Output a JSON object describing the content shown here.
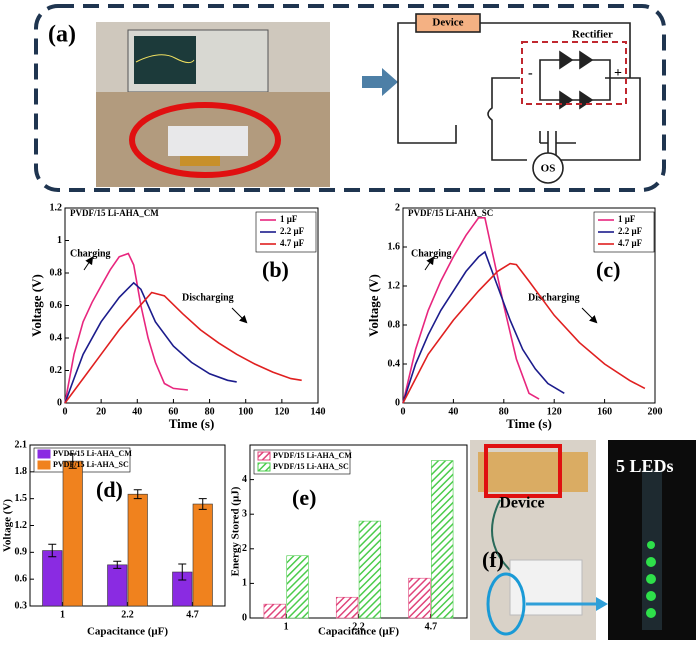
{
  "panel_a": {
    "label": "(a)",
    "device": "Device",
    "rectifier": "Rectifier",
    "minus": "-",
    "plus": "+",
    "os": "OS"
  },
  "panel_f": {
    "label": "(f)",
    "device": "Device",
    "leds": "5 LEDs"
  },
  "chart_data": [
    {
      "type": "line",
      "title": "PVDF/15 Li-AHA_CM",
      "label": "(b)",
      "annotations": [
        "Charging",
        "Discharging"
      ],
      "x_label": "Time (s)",
      "y_label": "Voltage (V)",
      "xlim": [
        0,
        140
      ],
      "xticks": [
        0,
        20,
        40,
        60,
        80,
        100,
        120,
        140
      ],
      "ylim": [
        0,
        1.2
      ],
      "yticks": [
        0,
        0.2,
        0.4,
        0.6,
        0.8,
        1,
        1.2
      ],
      "series": [
        {
          "name": "1 μF",
          "color": "#e8267e",
          "x": [
            0,
            5,
            10,
            15,
            20,
            25,
            30,
            35,
            38,
            42,
            46,
            50,
            55,
            60,
            68
          ],
          "values": [
            0,
            0.3,
            0.5,
            0.62,
            0.72,
            0.82,
            0.9,
            0.92,
            0.85,
            0.6,
            0.4,
            0.25,
            0.12,
            0.09,
            0.08
          ]
        },
        {
          "name": "2.2 μF",
          "color": "#1c1c8c",
          "x": [
            0,
            5,
            10,
            20,
            30,
            38,
            42,
            50,
            60,
            70,
            80,
            90,
            95
          ],
          "values": [
            0,
            0.15,
            0.3,
            0.5,
            0.65,
            0.74,
            0.7,
            0.5,
            0.35,
            0.25,
            0.18,
            0.14,
            0.13
          ]
        },
        {
          "name": "4.7 μF",
          "color": "#e02020",
          "x": [
            0,
            10,
            20,
            30,
            40,
            48,
            55,
            65,
            75,
            85,
            95,
            105,
            115,
            125,
            131
          ],
          "values": [
            0,
            0.15,
            0.3,
            0.45,
            0.58,
            0.68,
            0.66,
            0.55,
            0.45,
            0.37,
            0.3,
            0.24,
            0.19,
            0.15,
            0.14
          ]
        }
      ]
    },
    {
      "type": "line",
      "title": "PVDF/15 Li-AHA_SC",
      "label": "(c)",
      "annotations": [
        "Charging",
        "Discharging"
      ],
      "x_label": "Time (s)",
      "y_label": "Voltage (V)",
      "xlim": [
        0,
        200
      ],
      "xticks": [
        0,
        40,
        80,
        120,
        160,
        200
      ],
      "ylim": [
        0,
        2
      ],
      "yticks": [
        0,
        0.4,
        0.8,
        1.2,
        1.6,
        2
      ],
      "series": [
        {
          "name": "1 μF",
          "color": "#e8267e",
          "x": [
            0,
            10,
            20,
            30,
            40,
            50,
            60,
            65,
            70,
            80,
            90,
            100,
            108
          ],
          "values": [
            0,
            0.55,
            0.95,
            1.25,
            1.5,
            1.72,
            1.9,
            1.9,
            1.6,
            1,
            0.45,
            0.1,
            0.04
          ]
        },
        {
          "name": "2.2 μF",
          "color": "#1c1c8c",
          "x": [
            0,
            10,
            20,
            30,
            40,
            50,
            60,
            65,
            75,
            85,
            95,
            105,
            115,
            128
          ],
          "values": [
            0,
            0.4,
            0.7,
            0.95,
            1.15,
            1.35,
            1.5,
            1.55,
            1.2,
            0.85,
            0.55,
            0.35,
            0.2,
            0.1
          ]
        },
        {
          "name": "4.7 μF",
          "color": "#e02020",
          "x": [
            0,
            20,
            40,
            60,
            75,
            85,
            90,
            100,
            120,
            140,
            160,
            180,
            192
          ],
          "values": [
            0,
            0.5,
            0.85,
            1.15,
            1.35,
            1.43,
            1.42,
            1.25,
            0.9,
            0.62,
            0.4,
            0.23,
            0.15
          ]
        }
      ]
    },
    {
      "type": "bar",
      "label": "(d)",
      "x_label": "Capacitance (μF)",
      "y_label": "Voltage (V)",
      "categories": [
        "1",
        "2.2",
        "4.7"
      ],
      "ylim": [
        0.3,
        2.1
      ],
      "yticks": [
        0.3,
        0.6,
        0.9,
        1.2,
        1.5,
        1.8,
        2.1
      ],
      "series": [
        {
          "name": "PVDF/15 Li-AHA_CM",
          "color": "#8a2be2",
          "values": [
            0.92,
            0.76,
            0.68
          ],
          "errors": [
            0.07,
            0.04,
            0.09
          ]
        },
        {
          "name": "PVDF/15 Li-AHA_SC",
          "color": "#f0821e",
          "values": [
            1.92,
            1.55,
            1.44
          ],
          "errors": [
            0.08,
            0.05,
            0.06
          ]
        }
      ]
    },
    {
      "type": "bar",
      "hatch": true,
      "label": "(e)",
      "x_label": "Capacitance (μF)",
      "y_label": "Energy Stored (μJ)",
      "categories": [
        "1",
        "2.2",
        "4.7"
      ],
      "ylim": [
        0,
        5
      ],
      "yticks": [
        0,
        1,
        2,
        3,
        4
      ],
      "series": [
        {
          "name": "PVDF/15 Li-AHA_CM",
          "color": "#e0457b",
          "values": [
            0.4,
            0.6,
            1.15
          ]
        },
        {
          "name": "PVDF/15 Li-AHA_SC",
          "color": "#4ccc4c",
          "values": [
            1.8,
            2.8,
            4.55
          ]
        }
      ]
    }
  ]
}
